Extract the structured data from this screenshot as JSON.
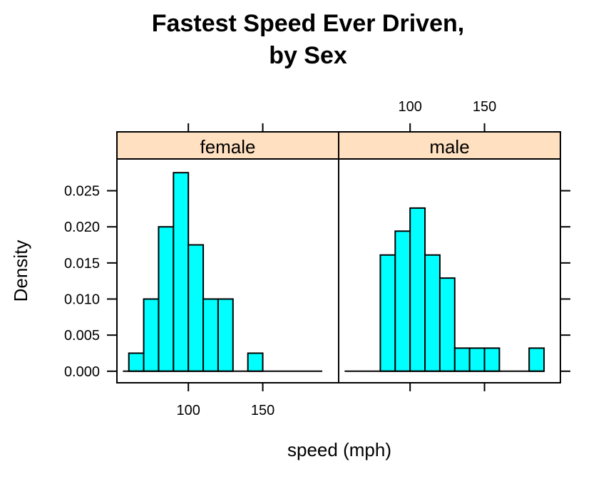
{
  "chart_data": {
    "type": "bar",
    "title": [
      "Fastest Speed Ever Driven,",
      "by Sex"
    ],
    "xlabel": "speed (mph)",
    "ylabel": "Density",
    "bin_width": 10,
    "xlim": [
      52,
      201
    ],
    "ylim": [
      -0.0016,
      0.0294
    ],
    "x_ticks": [
      100,
      150
    ],
    "y_ticks": [
      0.0,
      0.005,
      0.01,
      0.015,
      0.02,
      0.025
    ],
    "y_tick_labels": [
      "0.000",
      "0.005",
      "0.010",
      "0.015",
      "0.020",
      "0.025"
    ],
    "colors": {
      "bar_fill": "#00ffff",
      "strip_fill": "#ffe0c0",
      "stroke": "#000000"
    },
    "panels": [
      {
        "name": "female",
        "bins": [
          60,
          70,
          80,
          90,
          100,
          110,
          120,
          130,
          140
        ],
        "values": [
          0.0025,
          0.01,
          0.02,
          0.0275,
          0.0175,
          0.01,
          0.01,
          0.0,
          0.0025
        ]
      },
      {
        "name": "male",
        "bins": [
          80,
          90,
          100,
          110,
          120,
          130,
          140,
          150,
          160,
          170,
          180
        ],
        "values": [
          0.0161,
          0.0194,
          0.0226,
          0.0161,
          0.0129,
          0.0032,
          0.0032,
          0.0032,
          0.0,
          0.0,
          0.0032
        ]
      }
    ]
  }
}
